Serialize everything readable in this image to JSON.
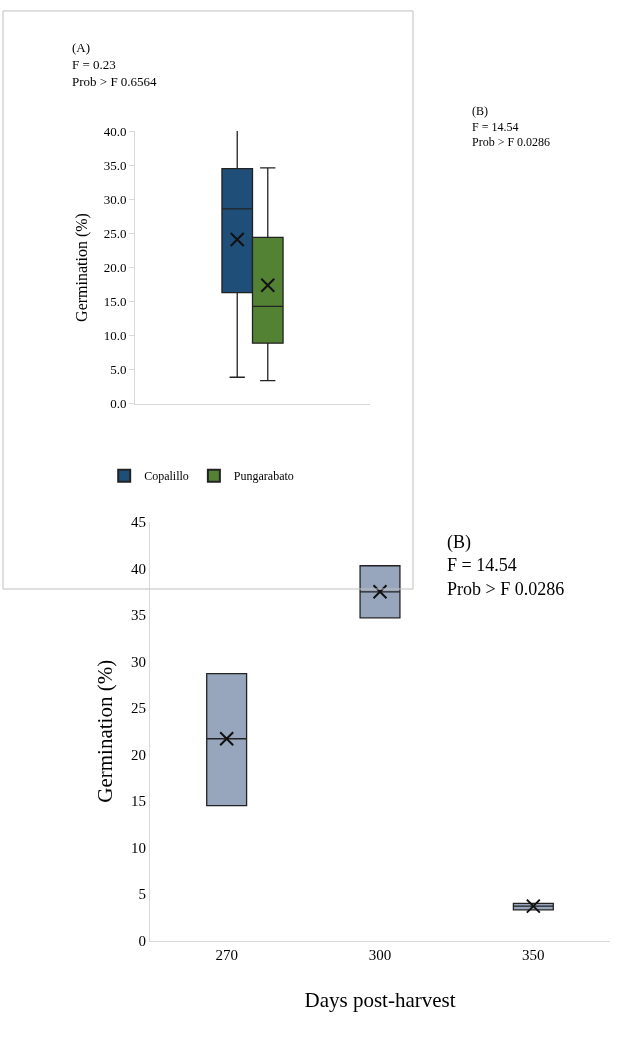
{
  "chart_data": [
    {
      "type": "box",
      "ylabel": "Germination (%)",
      "categories": [
        null
      ],
      "ylim": [
        0,
        40
      ],
      "yticks": [
        {
          "value": 0,
          "label": "0.0"
        },
        {
          "value": 5,
          "label": "5.0"
        },
        {
          "value": 10,
          "label": "10.0"
        },
        {
          "value": 15,
          "label": "15.0"
        },
        {
          "value": 20,
          "label": "20.0"
        },
        {
          "value": 25,
          "label": "25.0"
        },
        {
          "value": 30,
          "label": "30.0"
        },
        {
          "value": 35,
          "label": "35.0"
        },
        {
          "value": 40,
          "label": "40.0"
        }
      ],
      "tick_labels": "y",
      "legend": "bottom",
      "annotations": [
        "(A)\nF = 0.23\nProb > F 0.6564",
        "(B)\nF = 14.54\nProb > F 0.0286"
      ],
      "series": [
        {
          "name": "Copalillo",
          "color": "#1f4e79",
          "boxes": [
            {
              "low": 3.9,
              "q1": 16.3,
              "median": 28.6,
              "q3": 34.5,
              "high": 40.1,
              "mean": 24.1
            }
          ]
        },
        {
          "name": "Pungarabato",
          "color": "#548235",
          "boxes": [
            {
              "low": 3.4,
              "q1": 8.9,
              "median": 14.3,
              "q3": 24.4,
              "high": 34.6,
              "mean": 17.4
            }
          ]
        }
      ]
    },
    {
      "type": "box",
      "xlabel": "Days post-harvest",
      "ylabel": "Germination (%)",
      "categories": [
        "270",
        "300",
        "350"
      ],
      "ylim": [
        0,
        45
      ],
      "yticks": [
        0,
        5,
        10,
        15,
        20,
        25,
        30,
        35,
        40,
        45
      ],
      "legend": false,
      "annotations": [
        "(B)\nF = 14.54\nProb > F 0.0286"
      ],
      "series": [
        {
          "color": "#97a6bd",
          "boxes": [
            {
              "low": 14.5,
              "q1": 14.5,
              "median": 21.7,
              "q3": 28.7,
              "high": 28.7,
              "mean": 21.7
            },
            {
              "low": 34.7,
              "q1": 34.7,
              "median": 37.5,
              "q3": 40.3,
              "high": 40.3,
              "mean": 37.5
            },
            {
              "low": 3.3,
              "q1": 3.3,
              "median": 3.7,
              "q3": 4.0,
              "high": 4.0,
              "mean": 3.7
            }
          ]
        }
      ]
    }
  ]
}
